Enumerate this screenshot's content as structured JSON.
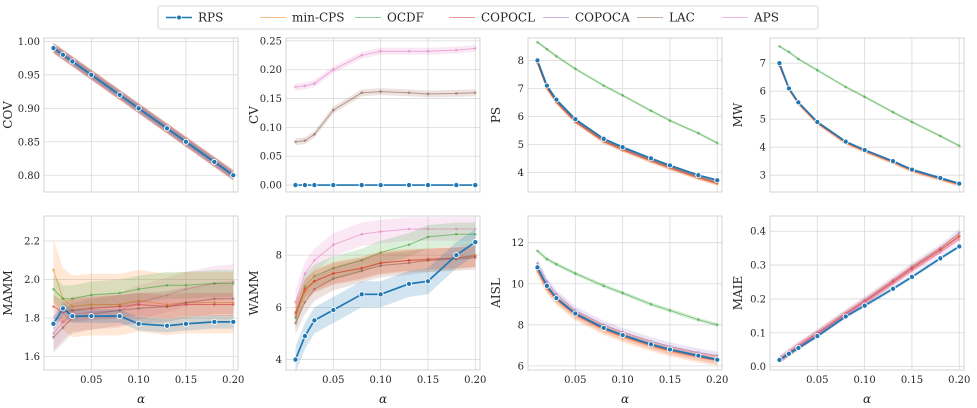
{
  "figure": {
    "x_label": "α",
    "colors": {
      "RPS": "#1f77b4",
      "min-CPS": "#ff7f0e",
      "OCDF": "#2ca02c",
      "COPOCL": "#d62728",
      "COPOCA": "#9467bd",
      "LAC": "#8c564b",
      "APS": "#e377c2"
    }
  },
  "legend": {
    "entries": [
      "RPS",
      "min-CPS",
      "OCDF",
      "COPOCL",
      "COPOCA",
      "LAC",
      "APS"
    ],
    "placement": "top-center"
  },
  "chart_data": [
    {
      "type": "line",
      "ylabel": "COV",
      "ylim": [
        0.775,
        1.005
      ],
      "yticks": [
        0.8,
        0.85,
        0.9,
        0.95,
        1.0
      ],
      "ytick_labels": [
        "0.80",
        "0.85",
        "0.90",
        "0.95",
        "1.00"
      ],
      "xlim": [
        0.0,
        0.205
      ],
      "xticks": [
        0.05,
        0.1,
        0.15,
        0.2
      ],
      "xtick_labels": [],
      "grid": true,
      "x": [
        0.01,
        0.02,
        0.03,
        0.05,
        0.08,
        0.1,
        0.13,
        0.15,
        0.18,
        0.2
      ],
      "series": [
        {
          "name": "RPS",
          "values": [
            0.99,
            0.98,
            0.97,
            0.95,
            0.92,
            0.9,
            0.87,
            0.85,
            0.82,
            0.8
          ],
          "band": 0.004
        },
        {
          "name": "min-CPS",
          "values": [
            0.99,
            0.98,
            0.97,
            0.95,
            0.92,
            0.9,
            0.87,
            0.85,
            0.82,
            0.8
          ],
          "band": 0.008
        },
        {
          "name": "OCDF",
          "values": [
            0.99,
            0.98,
            0.97,
            0.95,
            0.92,
            0.9,
            0.87,
            0.85,
            0.82,
            0.8
          ],
          "band": 0.006
        },
        {
          "name": "COPOCL",
          "values": [
            0.99,
            0.98,
            0.97,
            0.95,
            0.92,
            0.9,
            0.87,
            0.85,
            0.82,
            0.8
          ],
          "band": 0.008
        },
        {
          "name": "COPOCA",
          "values": [
            0.99,
            0.98,
            0.97,
            0.95,
            0.92,
            0.9,
            0.87,
            0.85,
            0.82,
            0.8
          ],
          "band": 0.007
        },
        {
          "name": "LAC",
          "values": [
            0.99,
            0.98,
            0.97,
            0.95,
            0.92,
            0.9,
            0.87,
            0.85,
            0.82,
            0.8
          ],
          "band": 0.007
        },
        {
          "name": "APS",
          "values": [
            0.99,
            0.98,
            0.97,
            0.95,
            0.92,
            0.9,
            0.87,
            0.85,
            0.82,
            0.8
          ],
          "band": 0.006
        }
      ]
    },
    {
      "type": "line",
      "ylabel": "CV",
      "ylim": [
        -0.012,
        0.255
      ],
      "yticks": [
        0.0,
        0.05,
        0.1,
        0.15,
        0.2,
        0.25
      ],
      "ytick_labels": [
        "0.00",
        "0.05",
        "0.10",
        "0.15",
        "0.20",
        "0.25"
      ],
      "xlim": [
        0.0,
        0.205
      ],
      "xticks": [
        0.05,
        0.1,
        0.15,
        0.2
      ],
      "xtick_labels": [],
      "grid": true,
      "x": [
        0.01,
        0.02,
        0.03,
        0.05,
        0.08,
        0.1,
        0.13,
        0.15,
        0.18,
        0.2
      ],
      "series": [
        {
          "name": "APS",
          "values": [
            0.17,
            0.172,
            0.176,
            0.2,
            0.225,
            0.232,
            0.232,
            0.232,
            0.234,
            0.237
          ],
          "band": 0.006
        },
        {
          "name": "LAC",
          "values": [
            0.075,
            0.077,
            0.088,
            0.13,
            0.16,
            0.162,
            0.16,
            0.158,
            0.159,
            0.16
          ],
          "band": 0.006
        },
        {
          "name": "min-CPS",
          "values": [
            0.0,
            0.0,
            0.0,
            0.0,
            0.0,
            0.0,
            0.0,
            0.0,
            0.0,
            0.0
          ],
          "band": 0.0
        },
        {
          "name": "OCDF",
          "values": [
            0.0,
            0.0,
            0.0,
            0.0,
            0.0,
            0.0,
            0.0,
            0.0,
            0.0,
            0.0
          ],
          "band": 0.0
        },
        {
          "name": "RPS",
          "values": [
            0.0,
            0.0,
            0.0,
            0.0,
            0.0,
            0.0,
            0.0,
            0.0,
            0.0,
            0.0
          ],
          "band": 0.0
        }
      ]
    },
    {
      "type": "line",
      "ylabel": "PS",
      "ylim": [
        3.3,
        8.8
      ],
      "yticks": [
        4,
        5,
        6,
        7,
        8
      ],
      "ytick_labels": [
        "4",
        "5",
        "6",
        "7",
        "8"
      ],
      "xlim": [
        0.0,
        0.205
      ],
      "xticks": [
        0.05,
        0.1,
        0.15,
        0.2
      ],
      "xtick_labels": [],
      "grid": true,
      "x": [
        0.01,
        0.02,
        0.03,
        0.05,
        0.08,
        0.1,
        0.13,
        0.15,
        0.18,
        0.2
      ],
      "series": [
        {
          "name": "OCDF",
          "values": [
            8.65,
            8.4,
            8.15,
            7.7,
            7.1,
            6.75,
            6.2,
            5.85,
            5.4,
            5.05
          ],
          "band": 0.05
        },
        {
          "name": "min-CPS",
          "values": [
            7.9,
            7.0,
            6.5,
            5.8,
            5.1,
            4.8,
            4.4,
            4.15,
            3.8,
            3.6
          ],
          "band": 0.08
        },
        {
          "name": "COPOCL",
          "values": [
            7.92,
            7.02,
            6.52,
            5.82,
            5.12,
            4.82,
            4.42,
            4.17,
            3.82,
            3.62
          ],
          "band": 0.08
        },
        {
          "name": "LAC",
          "values": [
            7.95,
            7.05,
            6.55,
            5.85,
            5.15,
            4.85,
            4.45,
            4.2,
            3.85,
            3.65
          ],
          "band": 0.08
        },
        {
          "name": "RPS",
          "values": [
            8.0,
            7.1,
            6.6,
            5.9,
            5.2,
            4.9,
            4.5,
            4.25,
            3.9,
            3.72
          ],
          "band": 0.04
        }
      ]
    },
    {
      "type": "line",
      "ylabel": "MW",
      "ylim": [
        2.4,
        7.9
      ],
      "yticks": [
        3,
        4,
        5,
        6,
        7
      ],
      "ytick_labels": [
        "3",
        "4",
        "5",
        "6",
        "7"
      ],
      "xlim": [
        0.0,
        0.205
      ],
      "xticks": [
        0.05,
        0.1,
        0.15,
        0.2
      ],
      "xtick_labels": [],
      "grid": true,
      "x": [
        0.01,
        0.02,
        0.03,
        0.05,
        0.08,
        0.1,
        0.13,
        0.15,
        0.18,
        0.2
      ],
      "series": [
        {
          "name": "OCDF",
          "values": [
            7.6,
            7.4,
            7.15,
            6.75,
            6.15,
            5.8,
            5.25,
            4.9,
            4.4,
            4.05
          ],
          "band": 0.05
        },
        {
          "name": "min-CPS",
          "values": [
            6.9,
            6.05,
            5.55,
            4.85,
            4.15,
            3.85,
            3.45,
            3.15,
            2.85,
            2.65
          ],
          "band": 0.07
        },
        {
          "name": "COPOCL",
          "values": [
            6.92,
            6.07,
            5.57,
            4.87,
            4.17,
            3.87,
            3.47,
            3.17,
            2.87,
            2.67
          ],
          "band": 0.07
        },
        {
          "name": "RPS",
          "values": [
            7.0,
            6.1,
            5.6,
            4.9,
            4.2,
            3.9,
            3.5,
            3.2,
            2.9,
            2.7
          ],
          "band": 0.04
        }
      ]
    },
    {
      "type": "line",
      "ylabel": "MAMM",
      "ylim": [
        1.53,
        2.33
      ],
      "yticks": [
        1.6,
        1.8,
        2.0,
        2.2
      ],
      "ytick_labels": [
        "1.6",
        "1.8",
        "2.0",
        "2.2"
      ],
      "xlim": [
        0.0,
        0.205
      ],
      "xticks": [
        0.05,
        0.1,
        0.15,
        0.2
      ],
      "xtick_labels": [
        "0.05",
        "0.10",
        "0.15",
        "0.20"
      ],
      "grid": true,
      "x": [
        0.01,
        0.02,
        0.03,
        0.05,
        0.08,
        0.1,
        0.13,
        0.15,
        0.18,
        0.2
      ],
      "series": [
        {
          "name": "APS",
          "values": [
            1.72,
            1.78,
            1.82,
            1.83,
            1.84,
            1.88,
            1.92,
            1.95,
            1.98,
            1.99
          ],
          "band": 0.09
        },
        {
          "name": "min-CPS",
          "values": [
            2.05,
            1.9,
            1.86,
            1.87,
            1.87,
            1.89,
            1.87,
            1.88,
            1.88,
            1.88
          ],
          "band": 0.16
        },
        {
          "name": "OCDF",
          "values": [
            1.95,
            1.9,
            1.9,
            1.92,
            1.93,
            1.95,
            1.97,
            1.97,
            1.98,
            1.98
          ],
          "band": 0.07
        },
        {
          "name": "COPOCL",
          "values": [
            1.86,
            1.83,
            1.84,
            1.85,
            1.86,
            1.87,
            1.86,
            1.87,
            1.87,
            1.87
          ],
          "band": 0.06
        },
        {
          "name": "LAC",
          "values": [
            1.7,
            1.75,
            1.8,
            1.82,
            1.84,
            1.85,
            1.86,
            1.88,
            1.9,
            1.9
          ],
          "band": 0.08
        },
        {
          "name": "RPS",
          "values": [
            1.77,
            1.85,
            1.81,
            1.81,
            1.81,
            1.77,
            1.76,
            1.77,
            1.78,
            1.78
          ],
          "band": 0.035
        }
      ]
    },
    {
      "type": "line",
      "ylabel": "WAMM",
      "ylim": [
        3.6,
        9.5
      ],
      "yticks": [
        4,
        6,
        8
      ],
      "ytick_labels": [
        "4",
        "6",
        "8"
      ],
      "xlim": [
        0.0,
        0.205
      ],
      "xticks": [
        0.05,
        0.1,
        0.15,
        0.2
      ],
      "xtick_labels": [
        "0.05",
        "0.10",
        "0.15",
        "0.20"
      ],
      "grid": true,
      "x": [
        0.01,
        0.02,
        0.03,
        0.05,
        0.08,
        0.1,
        0.13,
        0.15,
        0.18,
        0.2
      ],
      "series": [
        {
          "name": "APS",
          "values": [
            6.2,
            7.3,
            7.8,
            8.4,
            8.8,
            8.9,
            9.0,
            9.0,
            9.0,
            9.0
          ],
          "band": 0.45
        },
        {
          "name": "OCDF",
          "values": [
            5.6,
            6.8,
            7.2,
            7.5,
            7.8,
            8.1,
            8.4,
            8.7,
            8.8,
            8.8
          ],
          "band": 0.45
        },
        {
          "name": "min-CPS",
          "values": [
            5.7,
            6.6,
            7.0,
            7.3,
            7.5,
            7.7,
            7.8,
            7.8,
            7.9,
            8.0
          ],
          "band": 0.45
        },
        {
          "name": "COPOCL",
          "values": [
            5.8,
            6.7,
            7.0,
            7.3,
            7.5,
            7.7,
            7.8,
            7.85,
            7.9,
            7.95
          ],
          "band": 0.4
        },
        {
          "name": "LAC",
          "values": [
            5.4,
            6.2,
            6.7,
            7.1,
            7.4,
            7.6,
            7.7,
            7.8,
            7.85,
            7.9
          ],
          "band": 0.45
        },
        {
          "name": "RPS",
          "values": [
            4.0,
            4.9,
            5.5,
            5.9,
            6.5,
            6.5,
            6.9,
            7.0,
            8.0,
            8.5
          ],
          "band": 0.5
        }
      ]
    },
    {
      "type": "line",
      "ylabel": "AISL",
      "ylim": [
        5.8,
        13.3
      ],
      "yticks": [
        6,
        8,
        10,
        12
      ],
      "ytick_labels": [
        "6",
        "8",
        "10",
        "12"
      ],
      "xlim": [
        0.0,
        0.205
      ],
      "xticks": [
        0.05,
        0.1,
        0.15,
        0.2
      ],
      "xtick_labels": [
        "0.05",
        "0.10",
        "0.15",
        "0.20"
      ],
      "grid": true,
      "x": [
        0.01,
        0.02,
        0.03,
        0.05,
        0.08,
        0.1,
        0.13,
        0.15,
        0.18,
        0.2
      ],
      "series": [
        {
          "name": "OCDF",
          "values": [
            11.6,
            11.2,
            10.95,
            10.5,
            9.9,
            9.55,
            9.0,
            8.7,
            8.25,
            8.0
          ],
          "band": 0.1
        },
        {
          "name": "COPOCA",
          "values": [
            11.0,
            10.1,
            9.5,
            8.7,
            8.0,
            7.65,
            7.2,
            6.95,
            6.65,
            6.5
          ],
          "band": 0.2
        },
        {
          "name": "min-CPS",
          "values": [
            10.6,
            9.75,
            9.2,
            8.45,
            7.75,
            7.4,
            6.95,
            6.7,
            6.4,
            6.25
          ],
          "band": 0.25
        },
        {
          "name": "COPOCL",
          "values": [
            10.7,
            9.8,
            9.25,
            8.5,
            7.8,
            7.45,
            7.0,
            6.75,
            6.45,
            6.28
          ],
          "band": 0.2
        },
        {
          "name": "RPS",
          "values": [
            10.8,
            9.9,
            9.3,
            8.55,
            7.85,
            7.5,
            7.05,
            6.8,
            6.5,
            6.3
          ],
          "band": 0.08
        }
      ]
    },
    {
      "type": "line",
      "ylabel": "MAIE",
      "ylim": [
        -0.01,
        0.445
      ],
      "yticks": [
        0.0,
        0.1,
        0.2,
        0.3,
        0.4
      ],
      "ytick_labels": [
        "0.0",
        "0.1",
        "0.2",
        "0.3",
        "0.4"
      ],
      "xlim": [
        0.0,
        0.205
      ],
      "xticks": [
        0.05,
        0.1,
        0.15,
        0.2
      ],
      "xtick_labels": [
        "0.05",
        "0.10",
        "0.15",
        "0.20"
      ],
      "grid": true,
      "x": [
        0.01,
        0.02,
        0.03,
        0.05,
        0.08,
        0.1,
        0.13,
        0.15,
        0.18,
        0.2
      ],
      "series": [
        {
          "name": "COPOCA",
          "values": [
            0.02,
            0.042,
            0.062,
            0.1,
            0.158,
            0.195,
            0.255,
            0.295,
            0.35,
            0.395
          ],
          "band": 0.012
        },
        {
          "name": "min-CPS",
          "values": [
            0.02,
            0.04,
            0.06,
            0.097,
            0.155,
            0.192,
            0.25,
            0.29,
            0.345,
            0.385
          ],
          "band": 0.01
        },
        {
          "name": "COPOCL",
          "values": [
            0.02,
            0.04,
            0.06,
            0.097,
            0.155,
            0.192,
            0.25,
            0.29,
            0.345,
            0.385
          ],
          "band": 0.01
        },
        {
          "name": "APS",
          "values": [
            0.02,
            0.04,
            0.06,
            0.096,
            0.153,
            0.19,
            0.246,
            0.284,
            0.338,
            0.376
          ],
          "band": 0.01
        },
        {
          "name": "RPS",
          "values": [
            0.02,
            0.038,
            0.055,
            0.09,
            0.148,
            0.18,
            0.23,
            0.265,
            0.32,
            0.355
          ],
          "band": 0.006
        }
      ]
    }
  ]
}
